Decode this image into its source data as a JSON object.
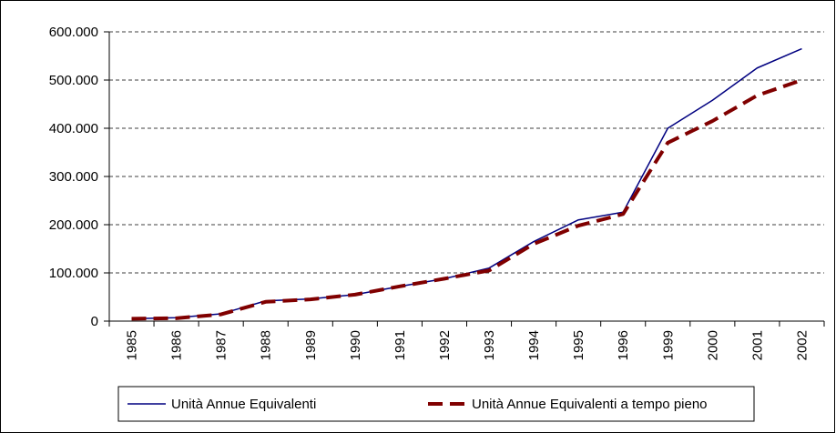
{
  "chart_data": {
    "type": "line",
    "categories": [
      "1985",
      "1986",
      "1987",
      "1988",
      "1989",
      "1990",
      "1991",
      "1992",
      "1993",
      "1994",
      "1995",
      "1996",
      "1999",
      "2000",
      "2001",
      "2002"
    ],
    "series": [
      {
        "name": "Unità Annue Equivalenti",
        "color": "#000080",
        "dashed": false,
        "values": [
          5000,
          7000,
          15000,
          42000,
          46000,
          55000,
          72000,
          88000,
          110000,
          165000,
          210000,
          226000,
          400000,
          458000,
          525000,
          565000
        ]
      },
      {
        "name": "Unità Annue Equivalenti a tempo pieno",
        "color": "#800000",
        "dashed": true,
        "values": [
          5000,
          6000,
          14000,
          40000,
          45000,
          55000,
          72000,
          88000,
          105000,
          160000,
          198000,
          222000,
          370000,
          415000,
          468000,
          500000
        ]
      }
    ],
    "ylim": [
      0,
      600000
    ],
    "yticks": [
      0,
      {
        "value": 100000,
        "label": "100.000"
      },
      {
        "value": 200000,
        "label": "200.000"
      },
      {
        "value": 300000,
        "label": "300.000"
      },
      {
        "value": 400000,
        "label": "400.000"
      },
      {
        "value": 500000,
        "label": "500.000"
      },
      {
        "value": 600000,
        "label": "600.000"
      }
    ],
    "grid": true,
    "legend": "bottom"
  }
}
